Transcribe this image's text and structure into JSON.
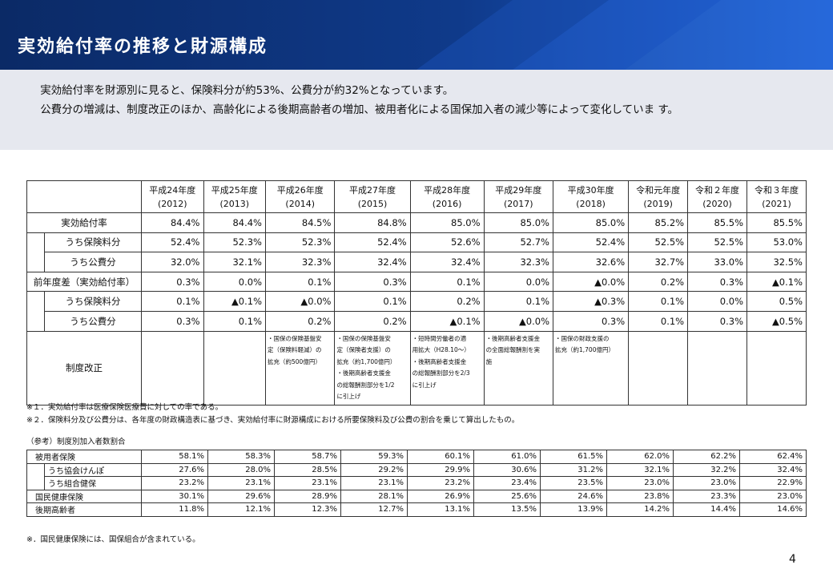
{
  "header": {
    "title": "実効給付率の推移と財源構成"
  },
  "intro": {
    "line1": "実効給付率を財源別に見ると、保険料分が約53%、公費分が約32%となっています。",
    "line2": "公費分の増減は、制度改正のほか、高齢化による後期高齢者の増加、被用者化による国保加入者の減少等によって変化していま す。"
  },
  "main_table": {
    "years": [
      {
        "era": "平成24年度",
        "ad": "(2012)"
      },
      {
        "era": "平成25年度",
        "ad": "(2013)"
      },
      {
        "era": "平成26年度",
        "ad": "(2014)"
      },
      {
        "era": "平成27年度",
        "ad": "(2015)"
      },
      {
        "era": "平成28年度",
        "ad": "(2016)"
      },
      {
        "era": "平成29年度",
        "ad": "(2017)"
      },
      {
        "era": "平成30年度",
        "ad": "(2018)"
      },
      {
        "era": "令和元年度",
        "ad": "(2019)"
      },
      {
        "era": "令和２年度",
        "ad": "(2020)"
      },
      {
        "era": "令和３年度",
        "ad": "(2021)"
      }
    ],
    "rows": [
      {
        "label": "実効給付率",
        "level": 0,
        "values": [
          "84.4%",
          "84.4%",
          "84.5%",
          "84.8%",
          "85.0%",
          "85.0%",
          "85.0%",
          "85.2%",
          "85.5%",
          "85.5%"
        ]
      },
      {
        "label": "うち保険料分",
        "level": 1,
        "values": [
          "52.4%",
          "52.3%",
          "52.3%",
          "52.4%",
          "52.6%",
          "52.7%",
          "52.4%",
          "52.5%",
          "52.5%",
          "53.0%"
        ]
      },
      {
        "label": "うち公費分",
        "level": 2,
        "values": [
          "32.0%",
          "32.1%",
          "32.3%",
          "32.4%",
          "32.4%",
          "32.3%",
          "32.6%",
          "32.7%",
          "33.0%",
          "32.5%"
        ]
      },
      {
        "label": "前年度差（実効給付率）",
        "level": 0,
        "values": [
          "0.3%",
          "0.0%",
          "0.1%",
          "0.3%",
          "0.1%",
          "0.0%",
          "▲0.0%",
          "0.2%",
          "0.3%",
          "▲0.1%"
        ]
      },
      {
        "label": "うち保険料分",
        "level": 1,
        "values": [
          "0.1%",
          "▲0.1%",
          "▲0.0%",
          "0.1%",
          "0.2%",
          "0.1%",
          "▲0.3%",
          "0.1%",
          "0.0%",
          "0.5%"
        ]
      },
      {
        "label": "うち公費分",
        "level": 2,
        "values": [
          "0.3%",
          "0.1%",
          "0.2%",
          "0.2%",
          "▲0.1%",
          "▲0.0%",
          "0.3%",
          "0.1%",
          "0.3%",
          "▲0.5%"
        ]
      }
    ],
    "reform_label": "制度改正",
    "reforms": [
      [],
      [],
      [
        "・国保の保険基盤安",
        "定（保険料軽減）の",
        "拡充（約500億円）"
      ],
      [
        "・国保の保険基盤安",
        "定（保険者支援）の",
        "拡充（約1,700億円）",
        "・後期高齢者支援金",
        "の総報酬割部分を1/2",
        "に引上げ"
      ],
      [
        "・短時間労働者の適",
        "用拡大（H28.10～）",
        "・後期高齢者支援金",
        "の総報酬割部分を2/3",
        "に引上げ"
      ],
      [
        "・後期高齢者支援金",
        "の全面総報酬割を実",
        "施"
      ],
      [
        "・国保の財政支援の",
        "拡充（約1,700億円）"
      ],
      [],
      [],
      []
    ]
  },
  "notes": [
    "※１．実効給付率は医療保険医療費に対しての率である。",
    "※２．保険料分及び公費分は、各年度の財政構造表に基づき、実効給付率に財源構成における所要保険料及び公費の割合を乗じて算出したもの。"
  ],
  "ref_title": "（参考）制度別加入者数割合",
  "ref_table": {
    "rows": [
      {
        "label": "被用者保険",
        "level": 0,
        "values": [
          "58.1%",
          "58.3%",
          "58.7%",
          "59.3%",
          "60.1%",
          "61.0%",
          "61.5%",
          "62.0%",
          "62.2%",
          "62.4%"
        ]
      },
      {
        "label": "うち協会けんぽ",
        "level": 1,
        "values": [
          "27.6%",
          "28.0%",
          "28.5%",
          "29.2%",
          "29.9%",
          "30.6%",
          "31.2%",
          "32.1%",
          "32.2%",
          "32.4%"
        ]
      },
      {
        "label": "うち組合健保",
        "level": 2,
        "values": [
          "23.2%",
          "23.1%",
          "23.1%",
          "23.1%",
          "23.2%",
          "23.4%",
          "23.5%",
          "23.0%",
          "23.0%",
          "22.9%"
        ]
      },
      {
        "label": "国民健康保険",
        "level": 0,
        "values": [
          "30.1%",
          "29.6%",
          "28.9%",
          "28.1%",
          "26.9%",
          "25.6%",
          "24.6%",
          "23.8%",
          "23.3%",
          "23.0%"
        ]
      },
      {
        "label": "後期高齢者",
        "level": 0,
        "values": [
          "11.8%",
          "12.1%",
          "12.3%",
          "12.7%",
          "13.1%",
          "13.5%",
          "13.9%",
          "14.2%",
          "14.4%",
          "14.6%"
        ]
      }
    ]
  },
  "ref_note": "※．国民健康保険には、国保組合が含まれている。",
  "page_number": "4"
}
